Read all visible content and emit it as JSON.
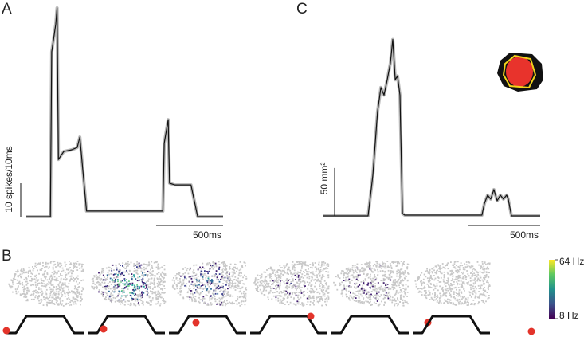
{
  "chart_data": [
    {
      "type": "line",
      "panel_label": "A",
      "x": [
        0,
        180,
        190,
        220,
        230,
        240,
        280,
        340,
        380,
        400,
        450,
        700,
        1020,
        1030,
        1060,
        1070,
        1110,
        1230,
        1280,
        1470
      ],
      "values": [
        0,
        0,
        49.3,
        57.6,
        62.4,
        17.1,
        19.5,
        20,
        20.7,
        23.8,
        1.7,
        1.7,
        1.7,
        21.9,
        29,
        10,
        9.5,
        9.5,
        0,
        0
      ],
      "xlim": [
        0,
        1470
      ],
      "ylim": [
        0,
        62.4
      ],
      "scale_bar": {
        "x": {
          "value": 500,
          "label": "500ms"
        },
        "y": {
          "value": 10,
          "label": "10 spikes/10ms"
        }
      }
    },
    {
      "type": "line",
      "panel_label": "C",
      "x": [
        0,
        317,
        350,
        383,
        406,
        428,
        450,
        472,
        489,
        506,
        522,
        539,
        556,
        572,
        1111,
        1128,
        1150,
        1172,
        1194,
        1217,
        1239,
        1261,
        1283,
        1294,
        1317,
        1517
      ],
      "values": [
        0,
        0,
        42.5,
        109,
        134,
        126,
        142,
        159,
        184,
        142,
        146,
        126,
        2.5,
        0.8,
        0.8,
        13,
        21.7,
        17.5,
        27.5,
        15.8,
        21.7,
        17.5,
        21.7,
        17.5,
        0,
        0
      ],
      "xlim": [
        0,
        1517
      ],
      "ylim": [
        0,
        192
      ],
      "scale_bar": {
        "x": {
          "value": 500,
          "label": "500ms"
        },
        "y": {
          "value": 50,
          "label": "50 mm²"
        }
      }
    }
  ],
  "panel_b": {
    "label": "B",
    "colorbar": {
      "lim": [
        8,
        64
      ],
      "ticks": [
        {
          "value": 64,
          "label": "64 Hz"
        },
        {
          "value": 8,
          "label": "8 Hz"
        }
      ]
    }
  }
}
